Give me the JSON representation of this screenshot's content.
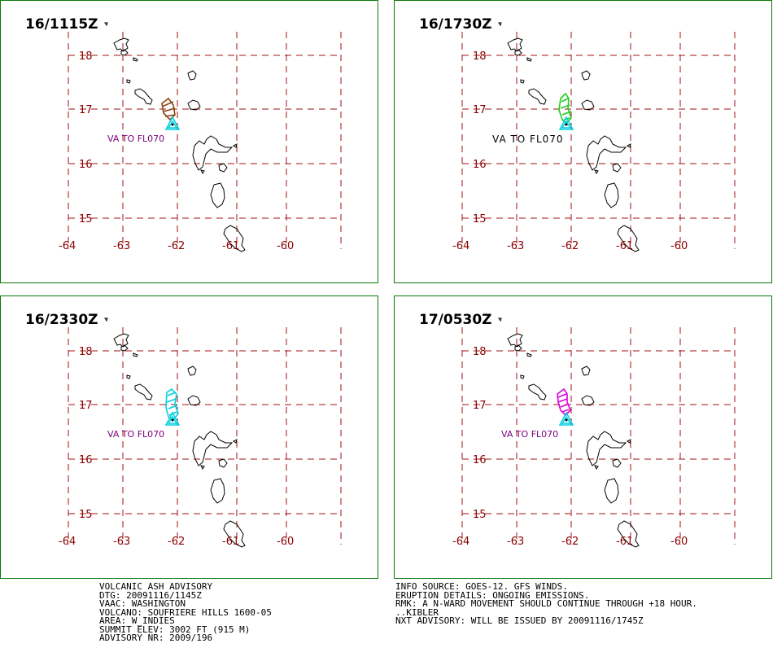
{
  "panels": [
    {
      "title": "16/1115Z",
      "label": "VA TO FL070",
      "label_style": "purple",
      "ash_color": "#8b4513"
    },
    {
      "title": "16/1730Z",
      "label": "VA TO FL070",
      "label_style": "black",
      "ash_color": "#22cc22"
    },
    {
      "title": "16/2330Z",
      "label": "VA TO FL070",
      "label_style": "purple",
      "ash_color": "#00d0e0"
    },
    {
      "title": "17/0530Z",
      "label": "VA TO FL070",
      "label_style": "purple",
      "ash_color": "#e000e0"
    }
  ],
  "axes": {
    "lat_labels": [
      "18",
      "17",
      "16",
      "15"
    ],
    "lon_labels": [
      "-64",
      "-63",
      "-62",
      "-61",
      "-60"
    ]
  },
  "colors": {
    "border": "#0a7a0a",
    "grid": "#a01010",
    "axis_labels": "#8b0000",
    "volcano": "#00d0e0",
    "va_text": "#7a007a"
  },
  "advisory_left": [
    "VOLCANIC ASH ADVISORY",
    "DTG: 20091116/1145Z",
    "VAAC: WASHINGTON",
    "VOLCANO: SOUFRIERE HILLS 1600-05",
    "AREA: W_INDIES",
    "SUMMIT ELEV: 3002 FT (915 M)",
    "ADVISORY NR: 2009/196"
  ],
  "advisory_right": [
    "INFO SOURCE: GOES-12. GFS WINDS.",
    "ERUPTION DETAILS: ONGOING EMISSIONS.",
    "RMK: A N-WARD MOVEMENT SHOULD CONTINUE THROUGH +18 HOUR.",
    "..KIBLER",
    "NXT ADVISORY: WILL BE ISSUED BY 20091116/1745Z"
  ]
}
